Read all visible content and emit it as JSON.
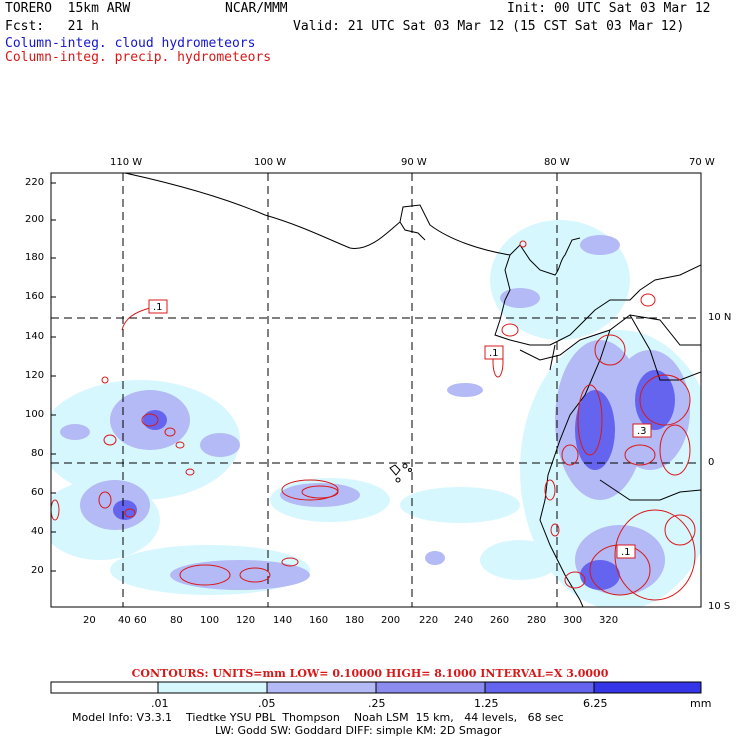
{
  "header": {
    "model": "TORERO  15km ARW",
    "org": "NCAR/MMM",
    "init": "Init: 00 UTC Sat 03 Mar 12",
    "fcst": "Fcst:   21 h",
    "valid": "Valid: 21 UTC Sat 03 Mar 12 (15 CST Sat 03 Mar 12)",
    "field_cloud": "Column-integ. cloud hydrometeors",
    "field_precip": "Column-integ. precip. hydrometeors"
  },
  "map": {
    "lon_labels": [
      "110 W",
      "100 W",
      "90 W",
      "80 W",
      "70 W"
    ],
    "lat_labels": [
      "10 N",
      "0",
      "10 S"
    ],
    "y_ticks": [
      "220",
      "200",
      "180",
      "160",
      "140",
      "120",
      "100",
      "80",
      "60",
      "40",
      "20"
    ],
    "x_ticks": [
      "20",
      "40",
      "60",
      "80",
      "100",
      "120",
      "140",
      "160",
      "180",
      "200",
      "220",
      "240",
      "260",
      "280",
      "300",
      "320"
    ],
    "contour_labels": [
      ".1",
      ".1",
      ".3",
      ".1"
    ]
  },
  "legend": {
    "contours_text": "CONTOURS:  UNITS=mm  LOW= 0.10000      HIGH=  8.1000      INTERVAL=X  3.0000",
    "bins": [
      ".01",
      ".05",
      ".25",
      "1.25",
      "6.25"
    ],
    "unit": "mm",
    "colors": [
      "#ffffff",
      "#d7f7ff",
      "#b3baf5",
      "#8c8cf0",
      "#6464ee",
      "#3535e8"
    ]
  },
  "footer": {
    "line1": "Model Info: V3.3.1    Tiedtke YSU PBL  Thompson    Noah LSM  15 km,   44 levels,   68 sec",
    "line2": "LW: Godd SW: Goddard DIFF: simple KM: 2D Smagor"
  }
}
